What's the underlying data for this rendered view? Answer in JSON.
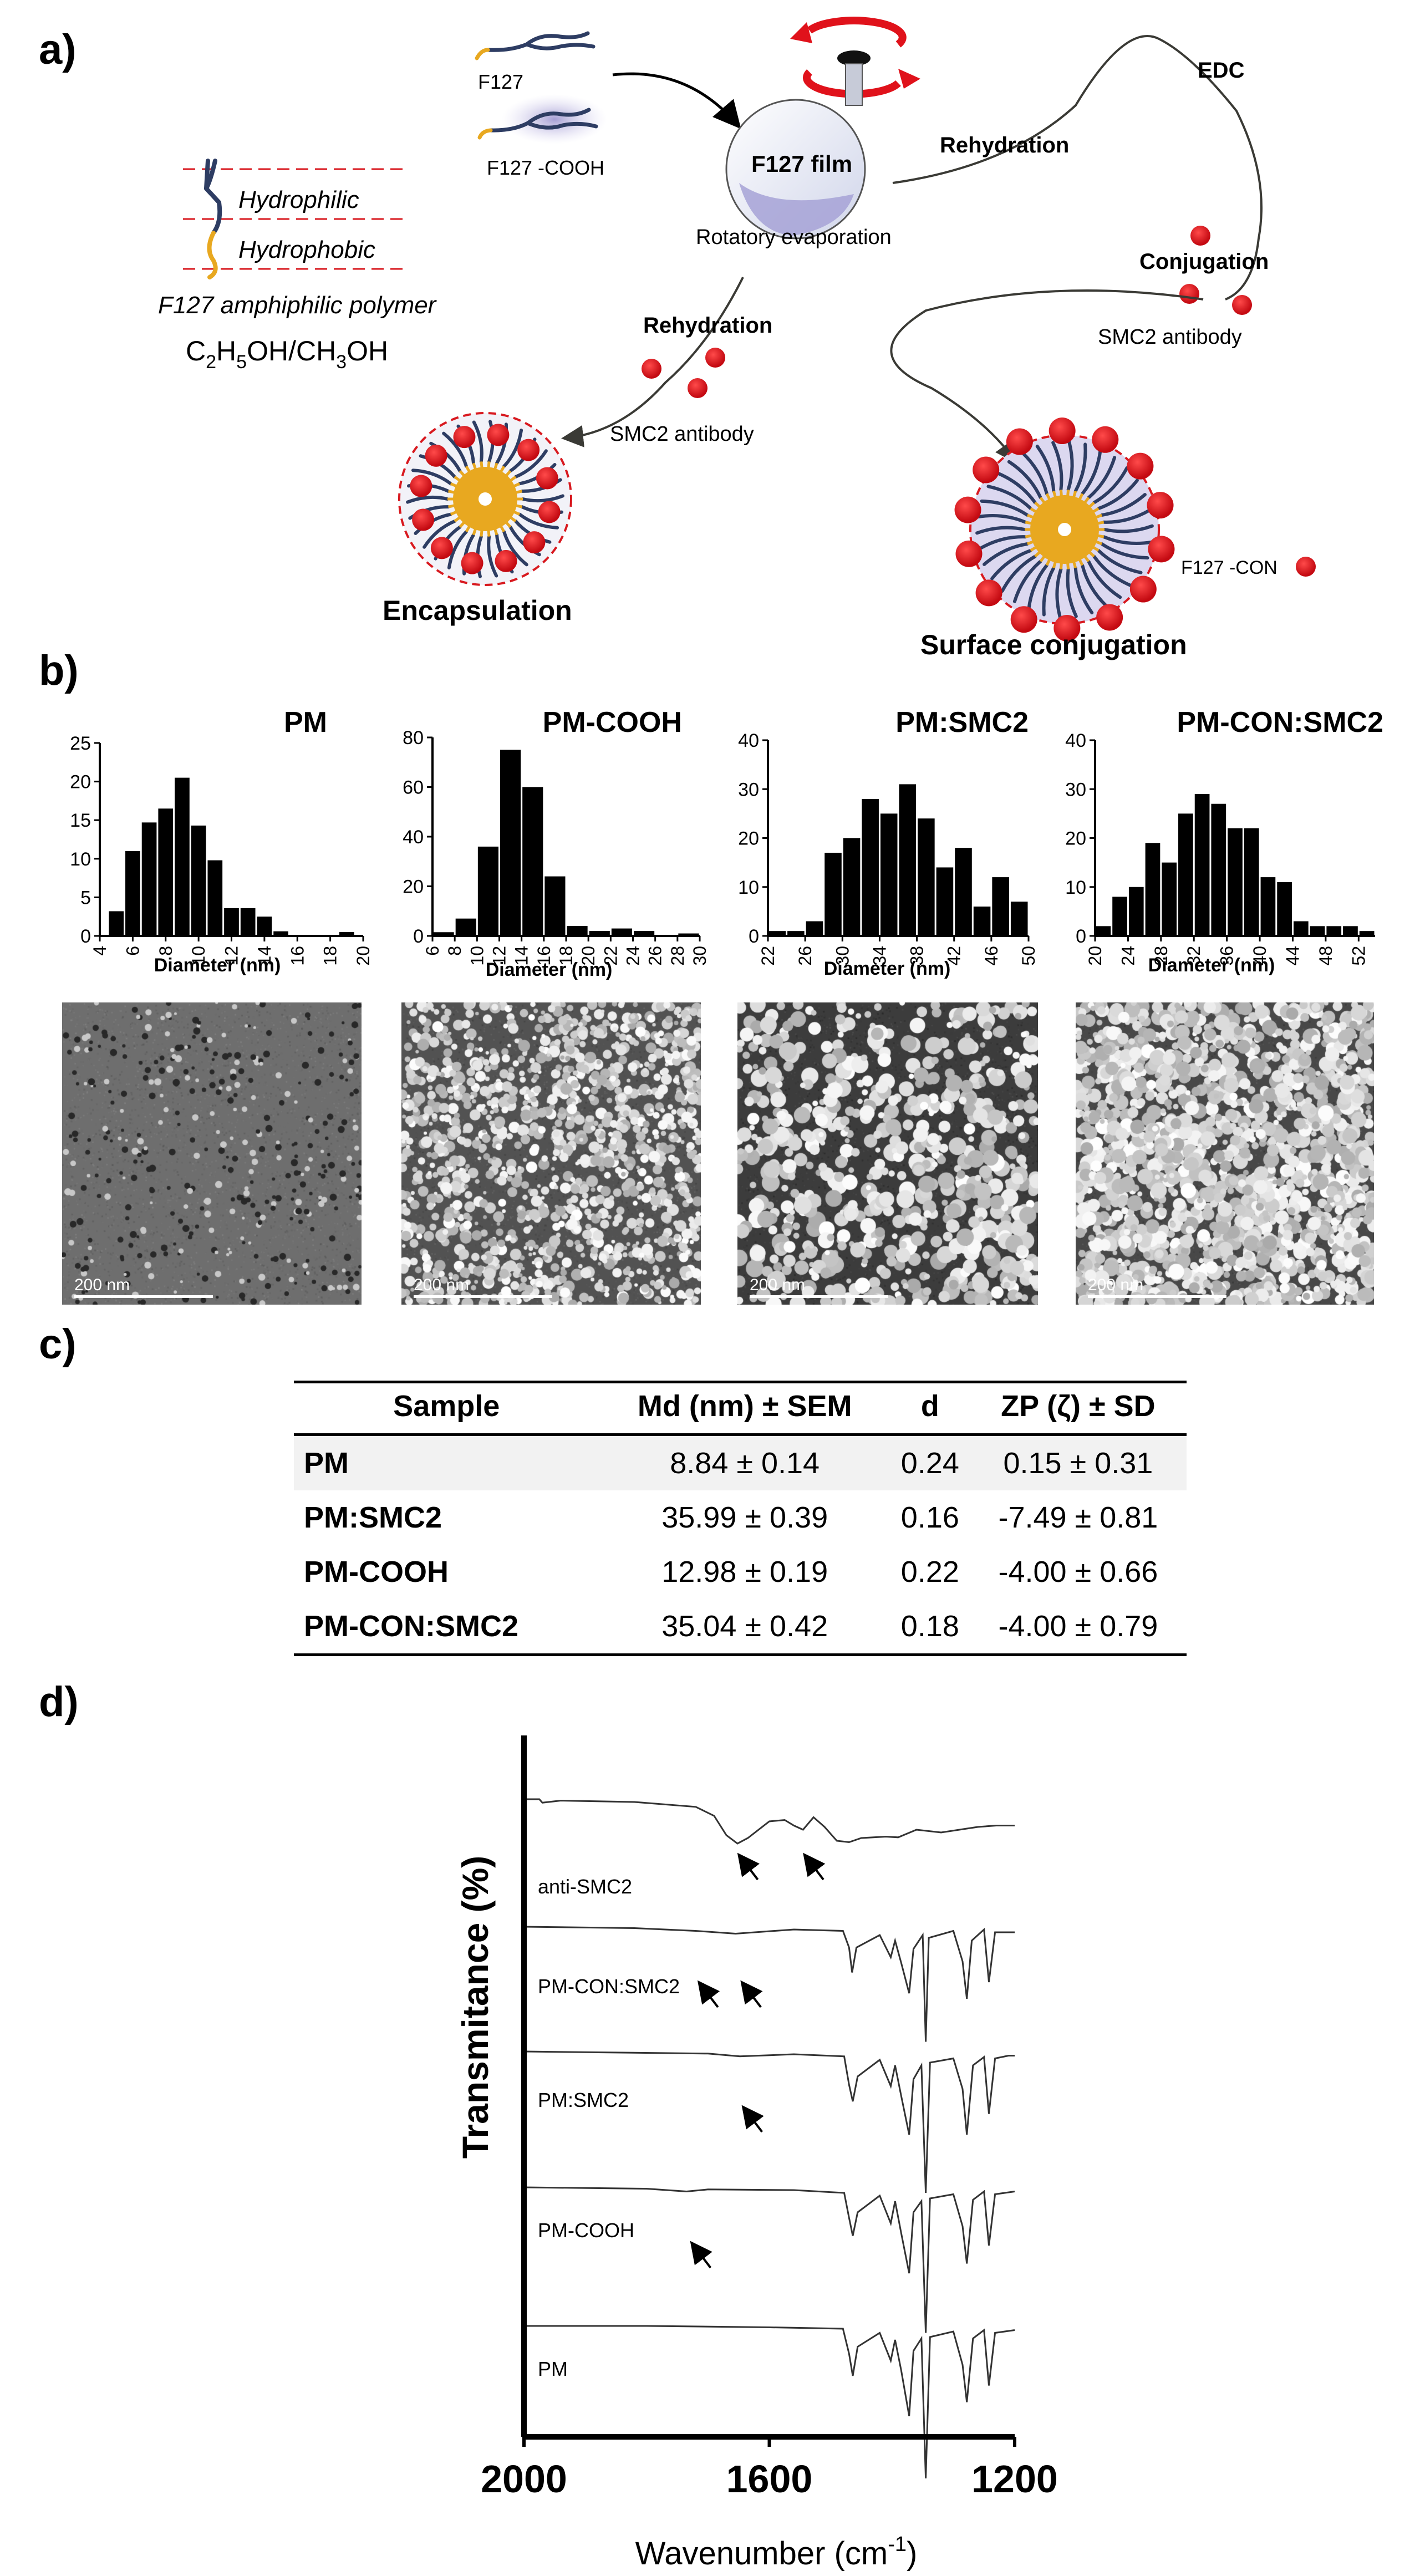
{
  "panel_labels": {
    "a": "a)",
    "b": "b)",
    "c": "c)",
    "d": "d)"
  },
  "scheme": {
    "polymer_key": {
      "hydrophilic": "Hydrophilic",
      "hydrophobic": "Hydrophobic",
      "caption": "F127 amphiphilic polymer",
      "solvent_prefix": "C",
      "solvent_tail": "OH/CH",
      "solvent_end": "OH",
      "solvent_sub_a": "2",
      "solvent_sub_b": "5",
      "solvent_sub_c": "3"
    },
    "f127": "F127",
    "f127_cooh": "F127 -COOH",
    "film_label": "F127 film",
    "rotatory": "Rotatory evaporation",
    "rehydration_top": "Rehydration",
    "edc": "EDC",
    "conjugation": "Conjugation",
    "smc2_antibody_right": "SMC2 antibody",
    "rehydration_left": "Rehydration",
    "smc2_antibody_left": "SMC2 antibody",
    "encapsulation": "Encapsulation",
    "surface_conjugation": "Surface conjugation",
    "f127_con": "F127 -CON",
    "colors": {
      "blue_chain": "#2e3d63",
      "gold": "#e8a820",
      "red": "#e0121b",
      "red_dash": "#d8191f"
    }
  },
  "tem": {
    "scale_label": "200  nm"
  },
  "chart_data": [
    {
      "type": "bar",
      "title": "PM",
      "xlabel": "Diameter (nm)",
      "ylabel": "",
      "ylim": [
        0,
        25
      ],
      "yticks": [
        0,
        5,
        10,
        15,
        20,
        25
      ],
      "xlim": [
        4,
        20
      ],
      "xticks": [
        4,
        6,
        8,
        10,
        12,
        14,
        16,
        18,
        20
      ],
      "bin_width": 1,
      "x": [
        5,
        6,
        7,
        8,
        9,
        10,
        11,
        12,
        13,
        14,
        15,
        16,
        17,
        18,
        19
      ],
      "values": [
        3.2,
        11,
        14.7,
        16.5,
        20.5,
        14.3,
        9.8,
        3.6,
        3.6,
        2.5,
        0.6,
        0.1,
        0.1,
        0.1,
        0.5
      ]
    },
    {
      "type": "bar",
      "title": "PM-COOH",
      "xlabel": "Diameter (nm)",
      "ylabel": "",
      "ylim": [
        0,
        80
      ],
      "yticks": [
        0,
        20,
        40,
        60,
        80
      ],
      "xlim": [
        6,
        30
      ],
      "xticks": [
        6,
        8,
        10,
        12,
        14,
        16,
        18,
        20,
        22,
        24,
        26,
        28,
        30
      ],
      "bin_width": 2,
      "x": [
        7,
        9,
        11,
        13,
        15,
        17,
        19,
        21,
        23,
        25,
        27,
        29
      ],
      "values": [
        1.5,
        7,
        36,
        75,
        60,
        24,
        4,
        2,
        3,
        2,
        0,
        1
      ]
    },
    {
      "type": "bar",
      "title": "PM:SMC2",
      "xlabel": "Diameter (nm)",
      "ylabel": "",
      "ylim": [
        0,
        40
      ],
      "yticks": [
        0,
        10,
        20,
        30,
        40
      ],
      "xlim": [
        22,
        50
      ],
      "xticks": [
        22,
        26,
        30,
        34,
        38,
        42,
        46,
        50
      ],
      "bin_width": 2,
      "x": [
        23,
        25,
        27,
        29,
        31,
        33,
        35,
        37,
        39,
        41,
        43,
        45,
        47,
        49
      ],
      "values": [
        1,
        1,
        3,
        17,
        20,
        28,
        25,
        31,
        24,
        14,
        18,
        6,
        12,
        7
      ]
    },
    {
      "type": "bar",
      "title": "PM-CON:SMC2",
      "xlabel": "Diameter (nm)",
      "ylabel": "",
      "ylim": [
        0,
        40
      ],
      "yticks": [
        0,
        10,
        20,
        30,
        40
      ],
      "xlim": [
        20,
        54
      ],
      "xticks": [
        20,
        24,
        28,
        32,
        36,
        40,
        44,
        48,
        52
      ],
      "bin_width": 2,
      "x": [
        21,
        23,
        25,
        27,
        29,
        31,
        33,
        35,
        37,
        39,
        41,
        43,
        45,
        47,
        49,
        51,
        53
      ],
      "values": [
        2,
        8,
        10,
        19,
        15,
        25,
        29,
        27,
        22,
        22,
        12,
        11,
        3,
        2,
        2,
        2,
        1
      ]
    },
    {
      "type": "line",
      "title": "",
      "xlabel": "Wavenumber (cm",
      "xlabel_sup": "-1",
      "xlabel_close": ")",
      "ylabel": "Transmitance (%)",
      "xlim": [
        2000,
        1200
      ],
      "xticks": [
        2000,
        1600,
        1200
      ],
      "series": [
        {
          "name": "anti-SMC2",
          "label": "anti-SMC2",
          "arrows": [
            1655,
            1548
          ],
          "points": [
            [
              2000,
              0
            ],
            [
              1975,
              0
            ],
            [
              1970,
              0.25
            ],
            [
              1940,
              0.1
            ],
            [
              1820,
              0.2
            ],
            [
              1720,
              0.55
            ],
            [
              1690,
              1.2
            ],
            [
              1670,
              2.6
            ],
            [
              1652,
              3.2
            ],
            [
              1635,
              2.8
            ],
            [
              1600,
              1.6
            ],
            [
              1575,
              1.5
            ],
            [
              1560,
              1.9
            ],
            [
              1545,
              2.2
            ],
            [
              1528,
              1.3
            ],
            [
              1510,
              2.0
            ],
            [
              1490,
              3.0
            ],
            [
              1470,
              3.1
            ],
            [
              1450,
              2.8
            ],
            [
              1410,
              2.7
            ],
            [
              1390,
              2.75
            ],
            [
              1360,
              2.2
            ],
            [
              1320,
              2.4
            ],
            [
              1260,
              2.0
            ],
            [
              1230,
              1.9
            ],
            [
              1200,
              1.9
            ]
          ]
        },
        {
          "name": "PM-CON:SMC2",
          "label": "PM-CON:SMC2",
          "arrows": [
            1720,
            1650
          ],
          "points": [
            [
              2000,
              0
            ],
            [
              1820,
              0.1
            ],
            [
              1720,
              0.3
            ],
            [
              1655,
              0.5
            ],
            [
              1560,
              0.2
            ],
            [
              1480,
              0.3
            ],
            [
              1470,
              1.5
            ],
            [
              1465,
              3.3
            ],
            [
              1458,
              1.5
            ],
            [
              1420,
              0.6
            ],
            [
              1402,
              2.2
            ],
            [
              1395,
              1.0
            ],
            [
              1385,
              2.6
            ],
            [
              1372,
              4.8
            ],
            [
              1365,
              1.6
            ],
            [
              1350,
              0.6
            ],
            [
              1345,
              8.3
            ],
            [
              1340,
              0.8
            ],
            [
              1300,
              0.3
            ],
            [
              1285,
              2.5
            ],
            [
              1278,
              5.2
            ],
            [
              1270,
              1.0
            ],
            [
              1250,
              0.2
            ],
            [
              1242,
              4.0
            ],
            [
              1232,
              0.4
            ],
            [
              1210,
              0.4
            ],
            [
              1200,
              0.4
            ]
          ]
        },
        {
          "name": "PM:SMC2",
          "label": "PM:SMC2",
          "arrows": [
            1648
          ],
          "points": [
            [
              2000,
              0
            ],
            [
              1700,
              0.15
            ],
            [
              1648,
              0.35
            ],
            [
              1560,
              0.2
            ],
            [
              1478,
              0.35
            ],
            [
              1470,
              2.4
            ],
            [
              1464,
              3.6
            ],
            [
              1456,
              1.8
            ],
            [
              1420,
              0.6
            ],
            [
              1402,
              2.5
            ],
            [
              1395,
              1.0
            ],
            [
              1385,
              3.2
            ],
            [
              1372,
              6.0
            ],
            [
              1365,
              2.0
            ],
            [
              1352,
              1.0
            ],
            [
              1345,
              10.2
            ],
            [
              1338,
              0.8
            ],
            [
              1300,
              0.5
            ],
            [
              1285,
              2.7
            ],
            [
              1278,
              6.0
            ],
            [
              1268,
              1.0
            ],
            [
              1250,
              0.4
            ],
            [
              1242,
              4.5
            ],
            [
              1232,
              0.5
            ],
            [
              1210,
              0.3
            ],
            [
              1200,
              0.3
            ]
          ]
        },
        {
          "name": "PM-COOH",
          "label": "PM-COOH",
          "arrows": [
            1732
          ],
          "points": [
            [
              2000,
              0
            ],
            [
              1800,
              0.1
            ],
            [
              1735,
              0.3
            ],
            [
              1700,
              0.15
            ],
            [
              1560,
              0.2
            ],
            [
              1478,
              0.4
            ],
            [
              1470,
              2.2
            ],
            [
              1464,
              3.5
            ],
            [
              1456,
              1.8
            ],
            [
              1420,
              0.6
            ],
            [
              1402,
              2.6
            ],
            [
              1395,
              1.0
            ],
            [
              1385,
              3.3
            ],
            [
              1372,
              6.2
            ],
            [
              1365,
              1.8
            ],
            [
              1352,
              1.0
            ],
            [
              1345,
              10.5
            ],
            [
              1338,
              0.8
            ],
            [
              1300,
              0.5
            ],
            [
              1285,
              2.8
            ],
            [
              1278,
              5.5
            ],
            [
              1268,
              0.9
            ],
            [
              1250,
              0.3
            ],
            [
              1242,
              4.2
            ],
            [
              1232,
              0.5
            ],
            [
              1200,
              0.3
            ]
          ]
        },
        {
          "name": "PM",
          "label": "PM",
          "arrows": [],
          "points": [
            [
              2000,
              0
            ],
            [
              1800,
              0
            ],
            [
              1600,
              0.1
            ],
            [
              1480,
              0.2
            ],
            [
              1470,
              2.0
            ],
            [
              1464,
              3.6
            ],
            [
              1456,
              1.5
            ],
            [
              1420,
              0.5
            ],
            [
              1402,
              2.5
            ],
            [
              1395,
              1.0
            ],
            [
              1385,
              3.2
            ],
            [
              1372,
              6.5
            ],
            [
              1365,
              1.8
            ],
            [
              1352,
              0.9
            ],
            [
              1345,
              11.0
            ],
            [
              1338,
              0.8
            ],
            [
              1300,
              0.4
            ],
            [
              1285,
              2.8
            ],
            [
              1278,
              5.5
            ],
            [
              1268,
              0.9
            ],
            [
              1250,
              0.3
            ],
            [
              1242,
              4.3
            ],
            [
              1232,
              0.5
            ],
            [
              1200,
              0.3
            ]
          ]
        }
      ]
    }
  ],
  "table": {
    "headers": [
      "Sample",
      "Md (nm) ± SEM",
      "d",
      "ZP (ζ) ± SD"
    ],
    "rows": [
      [
        "PM",
        "8.84 ± 0.14",
        "0.24",
        "0.15 ± 0.31"
      ],
      [
        "PM:SMC2",
        "35.99 ± 0.39",
        "0.16",
        "-7.49 ± 0.81"
      ],
      [
        "PM-COOH",
        "12.98 ± 0.19",
        "0.22",
        "-4.00 ± 0.66"
      ],
      [
        "PM-CON:SMC2",
        "35.04 ± 0.42",
        "0.18",
        "-4.00 ± 0.79"
      ]
    ]
  }
}
